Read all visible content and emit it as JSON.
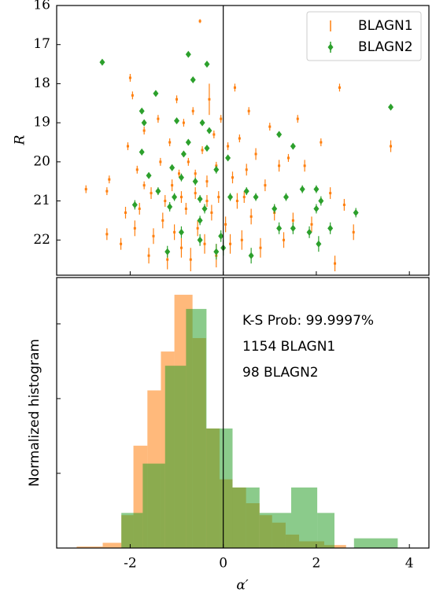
{
  "chart_data": [
    {
      "type": "scatter",
      "ylabel": "R",
      "xlim": [
        -3.58,
        4.42
      ],
      "ylim": [
        22.9,
        16
      ],
      "xticks": [
        -2,
        0,
        2,
        4
      ],
      "yticks": [
        16,
        17,
        18,
        19,
        20,
        21,
        22
      ],
      "vline": 0,
      "legend": "upper right",
      "series": [
        {
          "name": "BLAGN1",
          "color": "#ff7f0e",
          "marker": "point",
          "x": [
            -2.95,
            -2.5,
            -2.5,
            -2.45,
            -2.2,
            -2.1,
            -2.05,
            -2.0,
            -1.95,
            -1.9,
            -1.85,
            -1.8,
            -1.7,
            -1.6,
            -1.55,
            -1.5,
            -1.4,
            -1.35,
            -1.3,
            -1.2,
            -1.15,
            -1.1,
            -1.05,
            -1.0,
            -0.95,
            -0.9,
            -0.85,
            -0.8,
            -0.75,
            -0.7,
            -0.65,
            -0.6,
            -0.55,
            -0.5,
            -0.45,
            -0.4,
            -0.35,
            -0.3,
            -0.25,
            -0.2,
            -0.15,
            -0.1,
            -0.05,
            0.05,
            0.1,
            0.15,
            0.2,
            0.25,
            0.3,
            0.35,
            0.4,
            0.5,
            0.55,
            0.6,
            0.7,
            0.8,
            0.9,
            1.0,
            1.1,
            1.2,
            1.3,
            1.4,
            1.5,
            1.6,
            1.75,
            1.9,
            2.1,
            2.3,
            2.4,
            2.5,
            2.6,
            2.8,
            3.6,
            -0.6,
            -0.9,
            -1.25,
            -0.35,
            -0.15,
            0.45,
            -1.7
          ],
          "y": [
            20.7,
            21.85,
            20.75,
            20.45,
            22.1,
            21.3,
            19.6,
            17.85,
            18.3,
            21.7,
            20.2,
            21.2,
            19.2,
            22.4,
            20.8,
            21.9,
            18.9,
            20.0,
            21.5,
            22.5,
            19.5,
            20.6,
            21.8,
            18.4,
            20.3,
            22.2,
            19.0,
            21.2,
            20.0,
            22.5,
            18.7,
            20.8,
            21.7,
            16.4,
            19.7,
            22.1,
            20.5,
            18.4,
            21.3,
            19.3,
            22.4,
            20.9,
            18.9,
            21.6,
            19.6,
            22.1,
            20.4,
            18.1,
            21.0,
            19.4,
            22.0,
            20.2,
            18.7,
            21.4,
            19.8,
            22.2,
            20.6,
            19.1,
            21.3,
            20.1,
            22.0,
            19.9,
            21.5,
            18.9,
            20.1,
            21.6,
            19.5,
            20.8,
            22.6,
            18.1,
            21.1,
            21.8,
            19.6,
            20.3,
            20.9,
            21.0,
            21.0,
            20.1,
            20.9,
            20.6
          ],
          "yerr": [
            0.1,
            0.15,
            0.1,
            0.1,
            0.15,
            0.15,
            0.1,
            0.1,
            0.1,
            0.2,
            0.1,
            0.15,
            0.1,
            0.2,
            0.15,
            0.2,
            0.1,
            0.1,
            0.2,
            0.25,
            0.1,
            0.15,
            0.2,
            0.1,
            0.1,
            0.25,
            0.1,
            0.15,
            0.1,
            0.3,
            0.1,
            0.15,
            0.2,
            0.05,
            0.1,
            0.25,
            0.15,
            0.4,
            0.2,
            0.1,
            0.3,
            0.15,
            0.1,
            0.2,
            0.1,
            0.25,
            0.15,
            0.1,
            0.2,
            0.1,
            0.25,
            0.15,
            0.1,
            0.2,
            0.15,
            0.25,
            0.15,
            0.1,
            0.2,
            0.15,
            0.2,
            0.1,
            0.2,
            0.1,
            0.15,
            0.2,
            0.1,
            0.15,
            0.2,
            0.1,
            0.15,
            0.2,
            0.15,
            0.1,
            0.15,
            0.15,
            0.15,
            0.1,
            0.15,
            0.1
          ]
        },
        {
          "name": "BLAGN2",
          "color": "#2ca02c",
          "marker": "diamond",
          "x": [
            -2.6,
            -1.45,
            -0.75,
            -0.35,
            -0.65,
            -1.7,
            -1.75,
            -1.0,
            -0.45,
            -0.3,
            -1.75,
            -0.85,
            -1.1,
            -1.6,
            -0.15,
            0.1,
            -0.9,
            -0.6,
            -1.4,
            -1.05,
            -0.5,
            0.15,
            -1.15,
            -0.4,
            0.5,
            -1.9,
            0.7,
            1.1,
            1.35,
            2.0,
            1.7,
            2.1,
            2.0,
            1.2,
            1.5,
            3.6,
            2.85,
            1.2,
            1.5,
            1.85,
            2.3,
            2.05,
            -0.5,
            -1.2,
            -0.15,
            0.6,
            0.0,
            -0.05,
            -0.5,
            -0.9,
            -0.75,
            -0.35
          ],
          "y": [
            17.45,
            18.25,
            17.25,
            17.5,
            17.9,
            19.0,
            18.7,
            18.95,
            19.0,
            19.2,
            19.75,
            19.8,
            20.15,
            20.35,
            20.2,
            19.9,
            20.4,
            20.5,
            20.75,
            20.9,
            20.95,
            20.9,
            21.15,
            21.2,
            20.75,
            21.1,
            20.9,
            21.2,
            20.9,
            20.7,
            20.7,
            21.0,
            21.2,
            19.3,
            19.6,
            18.6,
            21.3,
            21.7,
            21.7,
            21.8,
            21.7,
            22.1,
            22.0,
            22.3,
            22.3,
            22.4,
            22.2,
            21.9,
            21.5,
            21.8,
            19.5,
            19.65
          ],
          "yerr": [
            0.05,
            0.05,
            0.05,
            0.05,
            0.05,
            0.08,
            0.05,
            0.05,
            0.05,
            0.05,
            0.08,
            0.08,
            0.08,
            0.08,
            0.1,
            0.08,
            0.1,
            0.1,
            0.1,
            0.1,
            0.1,
            0.1,
            0.12,
            0.12,
            0.1,
            0.12,
            0.1,
            0.12,
            0.1,
            0.1,
            0.1,
            0.12,
            0.12,
            0.08,
            0.08,
            0.05,
            0.12,
            0.15,
            0.15,
            0.15,
            0.15,
            0.2,
            0.15,
            0.15,
            0.2,
            0.2,
            0.2,
            0.15,
            0.12,
            0.15,
            0.08,
            0.08
          ]
        }
      ]
    },
    {
      "type": "histogram",
      "xlabel": "α′",
      "ylabel": "Normalized histogram",
      "xlim": [
        -3.58,
        4.42
      ],
      "ylim": [
        0,
        3.62
      ],
      "xticks": [
        -2,
        0,
        2,
        4
      ],
      "yticks": [
        1,
        2,
        3
      ],
      "vline": 0,
      "annotations": [
        {
          "text": "K-S Prob: 99.9997%",
          "color": "#000000"
        },
        {
          "text": "1154 BLAGN1",
          "color": "#ff7f0e"
        },
        {
          "text": "98 BLAGN2",
          "color": "#2ca02c"
        }
      ],
      "series": [
        {
          "name": "BLAGN1",
          "color": "#ff7f0e",
          "bins": [
            -3.15,
            -2.59,
            -2.19,
            -1.93,
            -1.63,
            -1.34,
            -1.05,
            -0.66,
            -0.37,
            -0.08,
            0.2,
            0.49,
            0.78,
            1.05,
            1.34,
            1.63,
            2.17,
            2.64
          ],
          "counts": [
            0.02,
            0.07,
            0.44,
            1.37,
            2.11,
            2.63,
            3.39,
            2.81,
            1.6,
            0.92,
            0.81,
            0.6,
            0.44,
            0.34,
            0.18,
            0.09,
            0.04
          ]
        },
        {
          "name": "BLAGN2",
          "color": "#2ca02c",
          "bins": [
            -2.19,
            -1.73,
            -1.25,
            -0.8,
            -0.36,
            0.2,
            0.78,
            1.46,
            2.02,
            2.39,
            2.81,
            3.75
          ],
          "counts": [
            0.47,
            1.13,
            2.44,
            3.2,
            1.6,
            0.81,
            0.47,
            0.81,
            0.47,
            0,
            0.13
          ]
        }
      ]
    }
  ]
}
